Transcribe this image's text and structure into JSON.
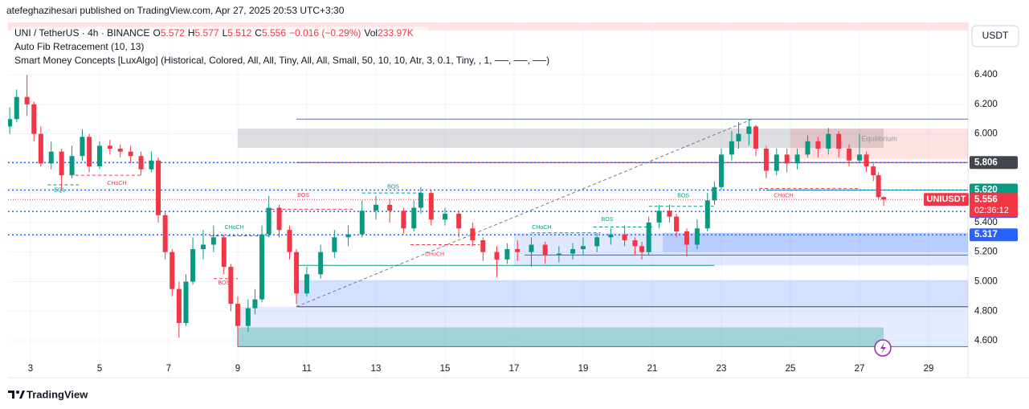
{
  "header": {
    "publisher": "atefeghazihesari published on TradingView.com, Apr 27, 2025 20:53 UTC+3:30"
  },
  "legend": {
    "symbol": "UNI / TetherUS · 4h · BINANCE",
    "fields": [
      {
        "label": "O",
        "value": "5.572"
      },
      {
        "label": "H",
        "value": "5.577"
      },
      {
        "label": "L",
        "value": "5.512"
      },
      {
        "label": "C",
        "value": "5.556"
      }
    ],
    "change": "−0.016 (−0.29%)",
    "vol_label": "Vol",
    "vol": "233.97K",
    "indicators": [
      "Auto Fib Retracement (10, 13)",
      "Smart Money Concepts [LuxAlgo] (Historical, Colored, All, All, Tiny, All, All, Small, 50, 10, 10, Atr, 3, 0.1, Tiny, , 1, ──, ──, ──)"
    ]
  },
  "chart_data": {
    "type": "candlestick",
    "currency": "USDT",
    "up_color": "#089981",
    "down_color": "#f23645",
    "grid": true,
    "xlim": [
      2.35,
      30.14
    ],
    "ylim": [
      4.35,
      6.743
    ],
    "xticks": [
      3,
      5,
      7,
      9,
      11,
      13,
      15,
      17,
      19,
      21,
      23,
      25,
      27,
      29
    ],
    "yticks": [
      {
        "value": 4.6,
        "label": "4.600"
      },
      {
        "value": 4.8,
        "label": "4.800"
      },
      {
        "value": 5.0,
        "label": "5.000"
      },
      {
        "value": 5.2,
        "label": "5.200"
      },
      {
        "value": 5.4,
        "label": "5.400"
      },
      {
        "value": 5.6,
        "label": "5.600"
      },
      {
        "value": 5.8,
        "label": "5.800"
      },
      {
        "value": 6.0,
        "label": "6.000"
      },
      {
        "value": 6.2,
        "label": "6.200"
      },
      {
        "value": 6.4,
        "label": "6.400"
      }
    ],
    "x": [
      2.4,
      2.6,
      2.9,
      3.1,
      3.3,
      3.6,
      3.9,
      4.2,
      4.5,
      4.7,
      5.0,
      5.3,
      5.6,
      5.9,
      6.2,
      6.5,
      6.7,
      6.9,
      7.1,
      7.3,
      7.5,
      7.7,
      8.0,
      8.3,
      8.6,
      8.8,
      9.0,
      9.3,
      9.5,
      9.7,
      9.9,
      10.2,
      10.5,
      10.7,
      11.0,
      11.4,
      11.8,
      12.2,
      12.6,
      13.0,
      13.4,
      13.8,
      14.1,
      14.3,
      14.6,
      15.0,
      15.4,
      15.8,
      16.1,
      16.5,
      16.8,
      17.1,
      17.5,
      17.9,
      18.3,
      18.7,
      19.0,
      19.4,
      19.8,
      20.2,
      20.5,
      20.7,
      20.9,
      21.2,
      21.5,
      21.7,
      22.0,
      22.3,
      22.6,
      22.8,
      23.0,
      23.3,
      23.5,
      23.8,
      24.0,
      24.3,
      24.6,
      24.9,
      25.2,
      25.5,
      25.8,
      26.1,
      26.4,
      26.7,
      27.0,
      27.2,
      27.4,
      27.55,
      27.7
    ],
    "ohlc": [
      [
        6.05,
        6.18,
        6.0,
        6.1
      ],
      [
        6.1,
        6.3,
        6.08,
        6.25
      ],
      [
        6.25,
        6.4,
        6.12,
        6.2
      ],
      [
        6.2,
        6.22,
        5.95,
        6.0
      ],
      [
        6.0,
        6.05,
        5.78,
        5.8
      ],
      [
        5.8,
        5.95,
        5.76,
        5.88
      ],
      [
        5.88,
        5.9,
        5.62,
        5.72
      ],
      [
        5.72,
        5.92,
        5.7,
        5.85
      ],
      [
        5.85,
        6.03,
        5.82,
        5.98
      ],
      [
        5.98,
        6.0,
        5.74,
        5.78
      ],
      [
        5.78,
        5.95,
        5.76,
        5.92
      ],
      [
        5.92,
        5.96,
        5.86,
        5.9
      ],
      [
        5.9,
        5.93,
        5.84,
        5.88
      ],
      [
        5.88,
        5.92,
        5.8,
        5.85
      ],
      [
        5.85,
        5.88,
        5.72,
        5.76
      ],
      [
        5.76,
        5.88,
        5.74,
        5.82
      ],
      [
        5.82,
        5.84,
        5.4,
        5.45
      ],
      [
        5.45,
        5.48,
        5.15,
        5.2
      ],
      [
        5.2,
        5.22,
        4.9,
        4.95
      ],
      [
        4.95,
        5.0,
        4.62,
        4.72
      ],
      [
        4.72,
        5.05,
        4.7,
        5.0
      ],
      [
        5.0,
        5.3,
        4.98,
        5.22
      ],
      [
        5.22,
        5.35,
        5.15,
        5.25
      ],
      [
        5.25,
        5.38,
        5.2,
        5.3
      ],
      [
        5.3,
        5.32,
        5.05,
        5.1
      ],
      [
        5.1,
        5.12,
        4.8,
        4.85
      ],
      [
        4.85,
        4.9,
        4.56,
        4.7
      ],
      [
        4.7,
        4.88,
        4.66,
        4.82
      ],
      [
        4.82,
        4.95,
        4.78,
        4.88
      ],
      [
        4.88,
        5.38,
        4.86,
        5.32
      ],
      [
        5.32,
        5.58,
        5.3,
        5.5
      ],
      [
        5.5,
        5.52,
        5.3,
        5.35
      ],
      [
        5.35,
        5.38,
        5.15,
        5.2
      ],
      [
        5.2,
        5.22,
        4.85,
        4.92
      ],
      [
        4.92,
        5.1,
        4.9,
        5.05
      ],
      [
        5.05,
        5.25,
        5.02,
        5.2
      ],
      [
        5.2,
        5.35,
        5.16,
        5.3
      ],
      [
        5.3,
        5.38,
        5.24,
        5.32
      ],
      [
        5.32,
        5.55,
        5.3,
        5.48
      ],
      [
        5.48,
        5.58,
        5.42,
        5.52
      ],
      [
        5.52,
        5.56,
        5.4,
        5.48
      ],
      [
        5.48,
        5.5,
        5.32,
        5.36
      ],
      [
        5.36,
        5.55,
        5.34,
        5.5
      ],
      [
        5.5,
        5.64,
        5.46,
        5.6
      ],
      [
        5.6,
        5.62,
        5.38,
        5.42
      ],
      [
        5.42,
        5.5,
        5.38,
        5.46
      ],
      [
        5.46,
        5.48,
        5.3,
        5.36
      ],
      [
        5.36,
        5.4,
        5.24,
        5.28
      ],
      [
        5.28,
        5.3,
        5.14,
        5.2
      ],
      [
        5.2,
        5.24,
        5.03,
        5.15
      ],
      [
        5.15,
        5.26,
        5.12,
        5.22
      ],
      [
        5.22,
        5.28,
        5.14,
        5.2
      ],
      [
        5.2,
        5.3,
        5.1,
        5.25
      ],
      [
        5.25,
        5.27,
        5.12,
        5.18
      ],
      [
        5.18,
        5.24,
        5.13,
        5.19
      ],
      [
        5.19,
        5.26,
        5.15,
        5.22
      ],
      [
        5.22,
        5.3,
        5.18,
        5.24
      ],
      [
        5.24,
        5.33,
        5.2,
        5.3
      ],
      [
        5.3,
        5.36,
        5.25,
        5.32
      ],
      [
        5.32,
        5.38,
        5.24,
        5.28
      ],
      [
        5.28,
        5.3,
        5.18,
        5.24
      ],
      [
        5.24,
        5.27,
        5.15,
        5.2
      ],
      [
        5.2,
        5.44,
        5.18,
        5.4
      ],
      [
        5.4,
        5.52,
        5.36,
        5.48
      ],
      [
        5.48,
        5.52,
        5.4,
        5.44
      ],
      [
        5.44,
        5.46,
        5.3,
        5.34
      ],
      [
        5.34,
        5.36,
        5.17,
        5.25
      ],
      [
        5.25,
        5.42,
        5.22,
        5.36
      ],
      [
        5.36,
        5.6,
        5.34,
        5.55
      ],
      [
        5.55,
        5.68,
        5.52,
        5.64
      ],
      [
        5.64,
        5.9,
        5.62,
        5.86
      ],
      [
        5.86,
        6.02,
        5.82,
        5.95
      ],
      [
        5.95,
        6.08,
        5.9,
        6.0
      ],
      [
        6.0,
        6.1,
        5.92,
        6.05
      ],
      [
        6.05,
        6.06,
        5.85,
        5.9
      ],
      [
        5.9,
        5.92,
        5.7,
        5.75
      ],
      [
        5.75,
        5.9,
        5.72,
        5.86
      ],
      [
        5.86,
        5.9,
        5.74,
        5.8
      ],
      [
        5.8,
        5.9,
        5.76,
        5.86
      ],
      [
        5.86,
        5.99,
        5.84,
        5.95
      ],
      [
        5.95,
        5.98,
        5.84,
        5.9
      ],
      [
        5.9,
        6.04,
        5.86,
        6.0
      ],
      [
        6.0,
        6.02,
        5.84,
        5.9
      ],
      [
        5.9,
        5.93,
        5.78,
        5.82
      ],
      [
        5.82,
        6.0,
        5.8,
        5.86
      ],
      [
        5.86,
        5.88,
        5.74,
        5.78
      ],
      [
        5.78,
        5.8,
        5.68,
        5.72
      ],
      [
        5.72,
        5.74,
        5.56,
        5.572
      ],
      [
        5.572,
        5.577,
        5.512,
        5.556
      ]
    ],
    "zones": [
      {
        "x": [
          9.0,
          27.7
        ],
        "y": [
          5.905,
          6.036
        ],
        "color": "rgba(120,123,134,0.25)"
      },
      {
        "x": [
          25.0,
          30.14
        ],
        "y": [
          5.83,
          6.036
        ],
        "color": "rgba(242,54,69,0.15)",
        "label": "Equilibrium"
      },
      {
        "x": [
          17.0,
          30.14
        ],
        "y": [
          5.11,
          5.33
        ],
        "color": "rgba(41,98,255,0.15)"
      },
      {
        "x": [
          21.3,
          30.14
        ],
        "y": [
          5.2,
          5.33
        ],
        "color": "rgba(41,98,255,0.2)"
      },
      {
        "x": [
          10.7,
          30.14
        ],
        "y": [
          4.83,
          5.01
        ],
        "color": "rgba(41,98,255,0.2)"
      },
      {
        "x": [
          9.0,
          30.14
        ],
        "y": [
          4.56,
          4.83
        ],
        "color": "rgba(41,98,255,0.12)"
      },
      {
        "x": [
          9.0,
          27.7
        ],
        "y": [
          4.56,
          4.69
        ],
        "color": "rgba(8,153,129,0.3)"
      }
    ],
    "lines": [
      {
        "x": [
          10.7,
          30.14
        ],
        "y": [
          6.1,
          6.1
        ],
        "color": "#5b6b9a",
        "dashed": false
      },
      {
        "x": [
          10.7,
          30.14
        ],
        "y": [
          5.806,
          5.806
        ],
        "color": "#b22833",
        "dashed": false
      },
      {
        "x": [
          10.7,
          23.9
        ],
        "y": [
          4.83,
          6.1
        ],
        "color": "#787b86",
        "dashed": true
      },
      {
        "x": [
          24.3,
          30.14
        ],
        "y": [
          5.62,
          5.62
        ],
        "color": "#089981",
        "dashed": false
      },
      {
        "x": [
          17.3,
          30.14
        ],
        "y": [
          5.18,
          5.18
        ],
        "color": "#2962ff",
        "dashed": false
      },
      {
        "x": [
          10.7,
          30.14
        ],
        "y": [
          4.83,
          4.83
        ],
        "color": "#434651",
        "dashed": false
      },
      {
        "x": [
          10.7,
          22.8
        ],
        "y": [
          5.11,
          5.11
        ],
        "color": "#089981",
        "dashed": false
      },
      {
        "x": [
          9.0,
          30.14
        ],
        "y": [
          4.56,
          4.56
        ],
        "color": "#089981",
        "dashed": false
      }
    ],
    "price_lines": [
      {
        "value": 5.806,
        "color": "#2962ff",
        "label_color": "#434651"
      },
      {
        "value": 5.62,
        "label": "5.620",
        "color": "#2962ff",
        "label_color": "#089981"
      },
      {
        "value": 5.475,
        "color": "#2962ff",
        "label_color": "#2962ff"
      },
      {
        "value": 5.317,
        "color": "#2962ff",
        "label_color": "#2962ff"
      }
    ],
    "last_price": {
      "symbol": "UNIUSDT",
      "value": 5.556,
      "countdown": "02:36:12",
      "color": "#f23645"
    },
    "annotations": [
      {
        "text": "EQL",
        "x": 3.85,
        "y": 5.62,
        "x1": 3.5,
        "x2": 4.4,
        "line_y": 5.655,
        "color": "#089981"
      },
      {
        "text": "CHoCH",
        "x": 5.5,
        "y": 5.665,
        "x1": 4.3,
        "x2": 6.2,
        "line_y": 5.72,
        "color": "#f23645"
      },
      {
        "text": "CHoCH",
        "x": 8.9,
        "y": 5.365,
        "x1": 8.2,
        "x2": 9.9,
        "line_y": 5.31,
        "color": "#089981"
      },
      {
        "text": "BOS",
        "x": 8.6,
        "y": 4.99,
        "x1": 8.3,
        "x2": 9.0,
        "line_y": 5.02,
        "color": "#f23645"
      },
      {
        "text": "BOS",
        "x": 10.9,
        "y": 5.585,
        "x1": 9.8,
        "x2": 12.4,
        "line_y": 5.49,
        "color": "#f23645"
      },
      {
        "text": "BOS",
        "x": 13.5,
        "y": 5.64,
        "x1": 12.6,
        "x2": 14.4,
        "line_y": 5.6,
        "color": "#089981"
      },
      {
        "text": "CHoCH",
        "x": 14.7,
        "y": 5.185,
        "x1": 14.0,
        "x2": 16.0,
        "line_y": 5.25,
        "color": "#f23645"
      },
      {
        "text": "CHoCH",
        "x": 17.8,
        "y": 5.365,
        "x1": 17.5,
        "x2": 19.5,
        "line_y": 5.33,
        "color": "#089981"
      },
      {
        "text": "BOS",
        "x": 19.7,
        "y": 5.42,
        "x1": 19.3,
        "x2": 21.0,
        "line_y": 5.37,
        "color": "#089981"
      },
      {
        "text": "BOS",
        "x": 21.9,
        "y": 5.58,
        "x1": 20.9,
        "x2": 22.8,
        "line_y": 5.51,
        "color": "#089981"
      },
      {
        "text": "CHoCH",
        "x": 24.8,
        "y": 5.58,
        "x1": 24.1,
        "x2": 27.0,
        "line_y": 5.63,
        "color": "#f23645"
      }
    ]
  },
  "footer": {
    "brand": "TradingView"
  }
}
